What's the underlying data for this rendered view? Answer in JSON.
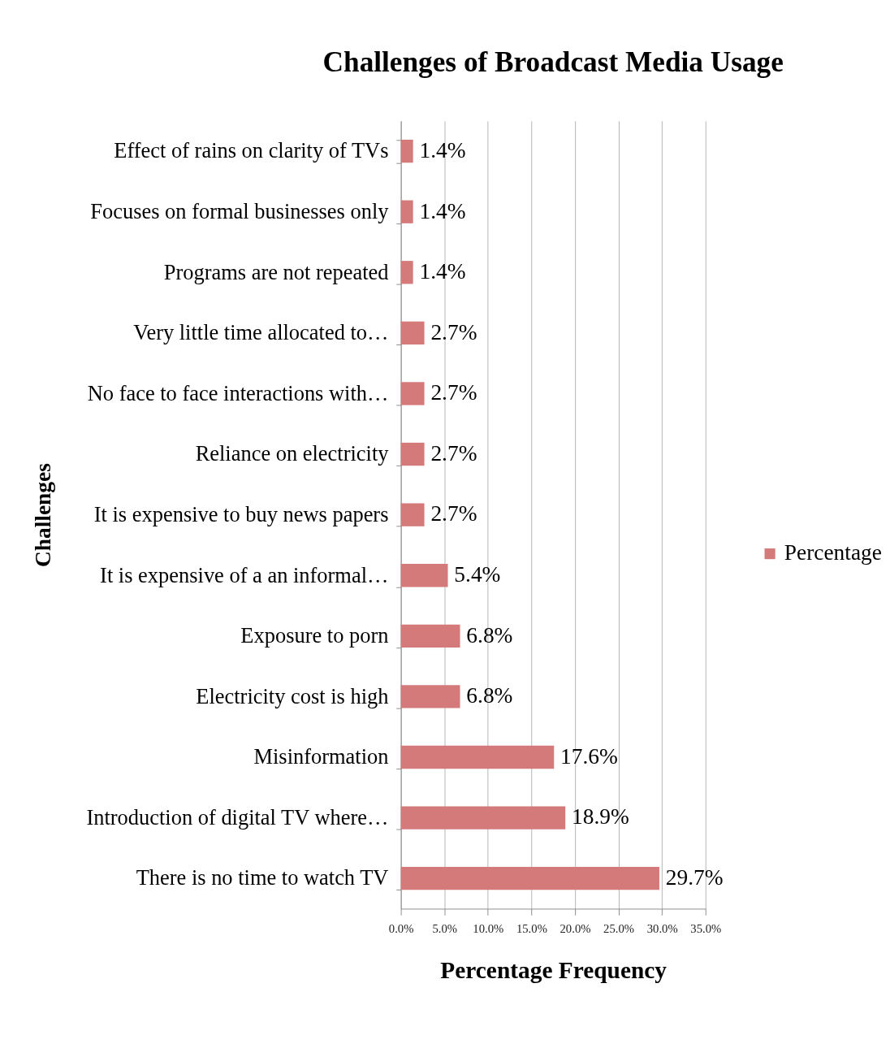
{
  "chart_data": {
    "type": "bar",
    "orientation": "horizontal",
    "title": "Challenges of Broadcast Media Usage",
    "xlabel": "Percentage Frequency",
    "ylabel": "Challenges",
    "categories": [
      "Effect of rains on clarity of TVs",
      "Focuses on formal businesses only",
      "Programs are not repeated",
      "Very little time allocated to…",
      "No face to face interactions with…",
      "Reliance on electricity",
      "It is expensive to buy news papers",
      "It is expensive of a an informal…",
      "Exposure to porn",
      "Electricity cost is high",
      "Misinformation",
      "Introduction of digital TV where…",
      "There is no time to watch TV"
    ],
    "series": [
      {
        "name": "Percentage",
        "color": "#d47a7a",
        "values": [
          1.4,
          1.4,
          1.4,
          2.7,
          2.7,
          2.7,
          2.7,
          5.4,
          6.8,
          6.8,
          17.6,
          18.9,
          29.7
        ],
        "value_labels": [
          "1.4%",
          "1.4%",
          "1.4%",
          "2.7%",
          "2.7%",
          "2.7%",
          "2.7%",
          "5.4%",
          "6.8%",
          "6.8%",
          "17.6%",
          "18.9%",
          "29.7%"
        ]
      }
    ],
    "xlim": [
      0,
      35
    ],
    "xticks": [
      {
        "value": 0,
        "label": "0.0%"
      },
      {
        "value": 5,
        "label": "5.0%"
      },
      {
        "value": 10,
        "label": "10.0%"
      },
      {
        "value": 15,
        "label": "15.0%"
      },
      {
        "value": 20,
        "label": "20.0%"
      },
      {
        "value": 25,
        "label": "25.0%"
      },
      {
        "value": 30,
        "label": "30.0%"
      },
      {
        "value": 35,
        "label": "35.0%"
      }
    ],
    "grid": "x",
    "legend": "right"
  }
}
